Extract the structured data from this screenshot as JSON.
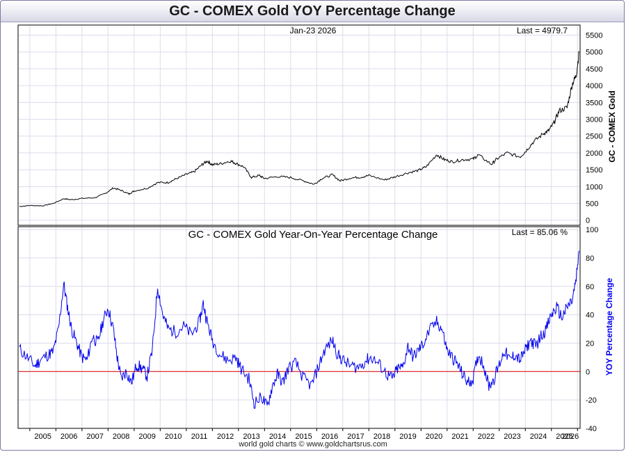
{
  "title": "GC - COMEX Gold YOY Percentage Change",
  "credit": "world gold charts © www.goldchartsrus.com",
  "colors": {
    "price_line": "#000000",
    "yoy_line": "#0000ee",
    "zero_line": "#dd0000",
    "grid": "#dcdcec"
  },
  "chart_data": [
    {
      "type": "line",
      "name": "price",
      "date_label": "Jan-23  2026",
      "last_label": "Last = 4979.7",
      "ylabel": "GC - COMEX Gold",
      "ylim": [
        -150,
        5800
      ],
      "yticks": [
        0,
        500,
        1000,
        1500,
        2000,
        2500,
        3000,
        3500,
        4000,
        4500,
        5000,
        5500
      ],
      "x": [
        2004.6,
        2005.0,
        2005.5,
        2005.9,
        2006.3,
        2006.6,
        2007.0,
        2007.5,
        2007.9,
        2008.2,
        2008.5,
        2008.8,
        2009.0,
        2009.5,
        2009.9,
        2010.3,
        2010.6,
        2011.0,
        2011.3,
        2011.6,
        2011.8,
        2012.0,
        2012.3,
        2012.7,
        2012.9,
        2013.2,
        2013.5,
        2013.8,
        2014.0,
        2014.5,
        2015.0,
        2015.5,
        2015.9,
        2016.2,
        2016.6,
        2016.9,
        2017.3,
        2017.7,
        2018.0,
        2018.6,
        2019.0,
        2019.5,
        2019.9,
        2020.2,
        2020.6,
        2020.9,
        2021.2,
        2021.6,
        2022.0,
        2022.2,
        2022.7,
        2022.9,
        2023.3,
        2023.8,
        2024.0,
        2024.3,
        2024.7,
        2024.9,
        2025.1,
        2025.3,
        2025.6,
        2025.8,
        2025.95,
        2026.06
      ],
      "values": [
        410,
        440,
        430,
        500,
        640,
        610,
        650,
        670,
        800,
        960,
        890,
        780,
        870,
        950,
        1120,
        1120,
        1230,
        1360,
        1440,
        1650,
        1760,
        1650,
        1680,
        1760,
        1690,
        1590,
        1270,
        1330,
        1240,
        1300,
        1270,
        1170,
        1070,
        1240,
        1350,
        1170,
        1260,
        1280,
        1330,
        1200,
        1290,
        1410,
        1480,
        1590,
        1950,
        1800,
        1740,
        1800,
        1820,
        1940,
        1660,
        1820,
        2000,
        1880,
        2040,
        2320,
        2580,
        2660,
        2900,
        3250,
        3350,
        4050,
        4300,
        4980
      ]
    },
    {
      "type": "line",
      "name": "yoy",
      "title": "GC - COMEX Gold Year-On-Year Percentage Change",
      "last_label": "Last = 85.06 %",
      "ylabel": "YOY Percentage Change",
      "ylim": [
        -40,
        102
      ],
      "yticks": [
        -40,
        -20,
        0,
        20,
        40,
        60,
        80,
        100
      ],
      "x": [
        2004.6,
        2004.9,
        2005.2,
        2005.4,
        2005.7,
        2005.9,
        2006.1,
        2006.3,
        2006.45,
        2006.6,
        2006.8,
        2007.0,
        2007.2,
        2007.4,
        2007.6,
        2007.8,
        2008.0,
        2008.2,
        2008.35,
        2008.5,
        2008.7,
        2008.9,
        2009.1,
        2009.3,
        2009.5,
        2009.7,
        2009.9,
        2010.1,
        2010.3,
        2010.6,
        2010.9,
        2011.2,
        2011.5,
        2011.65,
        2011.8,
        2012.0,
        2012.3,
        2012.6,
        2012.9,
        2013.1,
        2013.4,
        2013.6,
        2013.9,
        2014.1,
        2014.3,
        2014.5,
        2014.7,
        2014.9,
        2015.2,
        2015.5,
        2015.8,
        2016.1,
        2016.3,
        2016.6,
        2016.8,
        2017.0,
        2017.3,
        2017.6,
        2017.9,
        2018.1,
        2018.4,
        2018.7,
        2018.9,
        2019.1,
        2019.3,
        2019.5,
        2019.7,
        2019.9,
        2020.1,
        2020.3,
        2020.6,
        2020.8,
        2021.0,
        2021.2,
        2021.4,
        2021.6,
        2021.8,
        2022.0,
        2022.2,
        2022.4,
        2022.6,
        2022.8,
        2023.0,
        2023.2,
        2023.4,
        2023.6,
        2023.8,
        2024.0,
        2024.2,
        2024.4,
        2024.6,
        2024.8,
        2025.0,
        2025.2,
        2025.4,
        2025.6,
        2025.8,
        2025.95,
        2026.06
      ],
      "values": [
        16,
        10,
        4,
        8,
        12,
        14,
        30,
        62,
        45,
        30,
        20,
        10,
        8,
        25,
        20,
        35,
        45,
        30,
        10,
        -5,
        0,
        -8,
        5,
        2,
        -3,
        15,
        60,
        40,
        30,
        28,
        32,
        26,
        35,
        48,
        35,
        22,
        12,
        8,
        10,
        2,
        -5,
        -22,
        -18,
        -25,
        -10,
        -2,
        -8,
        2,
        6,
        -5,
        -10,
        5,
        15,
        22,
        12,
        8,
        4,
        3,
        8,
        10,
        5,
        -2,
        -5,
        2,
        3,
        18,
        10,
        15,
        20,
        28,
        35,
        30,
        15,
        10,
        5,
        -2,
        -8,
        -5,
        12,
        5,
        -10,
        -5,
        5,
        15,
        8,
        12,
        8,
        15,
        22,
        18,
        25,
        30,
        40,
        45,
        38,
        45,
        50,
        65,
        85
      ]
    }
  ],
  "xaxis": {
    "xlim": [
      2004.55,
      2026.1
    ],
    "years": [
      "2005",
      "2006",
      "2007",
      "2008",
      "2009",
      "2010",
      "2011",
      "2012",
      "2013",
      "2014",
      "2015",
      "2016",
      "2017",
      "2018",
      "2019",
      "2020",
      "2021",
      "2022",
      "2023",
      "2024",
      "2025",
      "2026"
    ]
  }
}
